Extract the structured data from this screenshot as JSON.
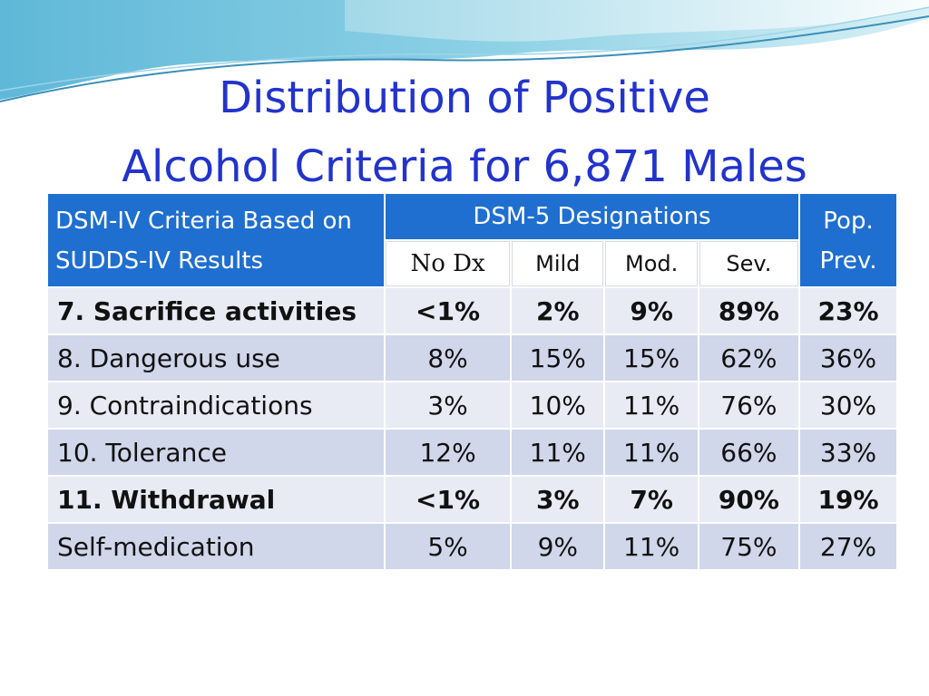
{
  "slide": {
    "title_line1": "Distribution of Positive",
    "title_line2": "Alcohol Criteria for 6,871 Males",
    "colors": {
      "title": "#2233cc",
      "header_bg": "#1f6fd0",
      "row_light": "#e8ebf4",
      "row_dark": "#d0d7ea"
    }
  },
  "table": {
    "header": {
      "criteria": "DSM-IV Criteria Based on SUDDS-IV Results",
      "dsm5": "DSM-5 Designations",
      "pop": "Pop. Prev.",
      "sub": [
        "No Dx",
        "Mild",
        "Mod.",
        "Sev."
      ]
    },
    "rows": [
      {
        "label": "7. Sacrifice activities",
        "no_dx": "<1%",
        "mild": "2%",
        "mod": "9%",
        "sev": "89%",
        "pop": "23%",
        "bold": true
      },
      {
        "label": "8. Dangerous use",
        "no_dx": "8%",
        "mild": "15%",
        "mod": "15%",
        "sev": "62%",
        "pop": "36%",
        "bold": false
      },
      {
        "label": "9. Contraindications",
        "no_dx": "3%",
        "mild": "10%",
        "mod": "11%",
        "sev": "76%",
        "pop": "30%",
        "bold": false
      },
      {
        "label": "10. Tolerance",
        "no_dx": "12%",
        "mild": "11%",
        "mod": "11%",
        "sev": "66%",
        "pop": "33%",
        "bold": false
      },
      {
        "label": "11. Withdrawal",
        "no_dx": "<1%",
        "mild": "3%",
        "mod": "7%",
        "sev": "90%",
        "pop": "19%",
        "bold": true
      },
      {
        "label": "Self-medication",
        "no_dx": "5%",
        "mild": "9%",
        "mod": "11%",
        "sev": "75%",
        "pop": "27%",
        "bold": false
      }
    ]
  }
}
